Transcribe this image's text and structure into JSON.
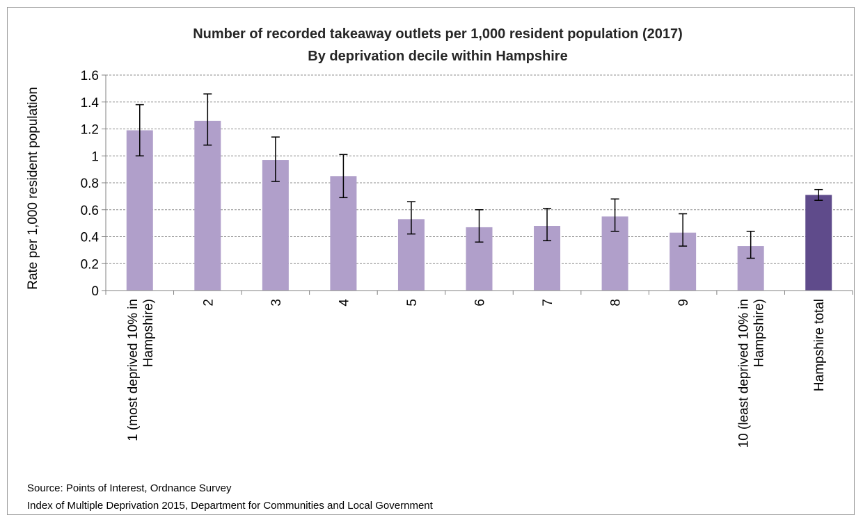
{
  "chart_data": {
    "type": "bar",
    "title": "Number of recorded takeaway outlets per 1,000 resident population (2017)",
    "subtitle": "By deprivation decile within Hampshire",
    "ylabel": "Rate per 1,000 resident population",
    "xlabel": "",
    "ylim": [
      0,
      1.6
    ],
    "yticks": [
      "0",
      "0.2",
      "0.4",
      "0.6",
      "0.8",
      "1",
      "1.2",
      "1.4",
      "1.6"
    ],
    "grid": "horizontal dashed",
    "categories": [
      "1 (most deprived 10% in Hampshire)",
      "2",
      "3",
      "4",
      "5",
      "6",
      "7",
      "8",
      "9",
      "10 (least deprived 10% in Hampshire)",
      "Hampshire total"
    ],
    "category_label_lines": [
      [
        "1 (most deprived 10% in",
        "Hampshire)"
      ],
      [
        "2"
      ],
      [
        "3"
      ],
      [
        "4"
      ],
      [
        "5"
      ],
      [
        "6"
      ],
      [
        "7"
      ],
      [
        "8"
      ],
      [
        "9"
      ],
      [
        "10 (least deprived 10% in",
        "Hampshire)"
      ],
      [
        "Hampshire total"
      ]
    ],
    "values": [
      1.19,
      1.26,
      0.97,
      0.85,
      0.53,
      0.47,
      0.48,
      0.55,
      0.43,
      0.33,
      0.71
    ],
    "error_lower": [
      1.0,
      1.08,
      0.81,
      0.69,
      0.42,
      0.36,
      0.37,
      0.44,
      0.33,
      0.24,
      0.67
    ],
    "error_upper": [
      1.38,
      1.46,
      1.14,
      1.01,
      0.66,
      0.6,
      0.61,
      0.68,
      0.57,
      0.44,
      0.75
    ],
    "colors": {
      "bar": "#b09fca",
      "total_bar": "#5f4b8b",
      "error_bar": "#000000",
      "grid": "#8c8c8c"
    }
  },
  "source": {
    "line1": "Source: Points of Interest, Ordnance Survey",
    "line2": "Index of Multiple Deprivation 2015, Department for Communities and Local Government"
  }
}
